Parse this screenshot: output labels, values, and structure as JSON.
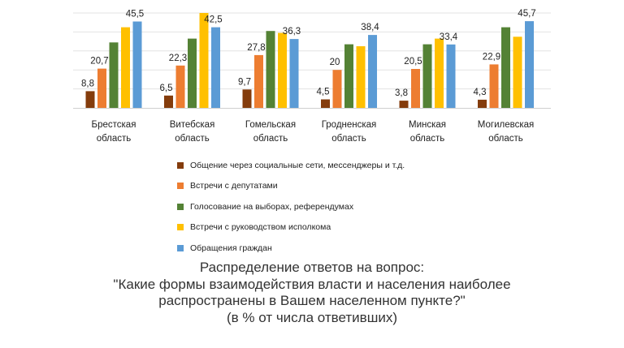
{
  "chart_data": {
    "type": "bar",
    "categories": [
      [
        "Брестская",
        "область"
      ],
      [
        "Витебская",
        "область"
      ],
      [
        "Гомельская",
        "область"
      ],
      [
        "Гродненская",
        "область"
      ],
      [
        "Минская",
        "область"
      ],
      [
        "Могилевская",
        "область"
      ]
    ],
    "series": [
      {
        "name": "Общение через социальные сети, мессенджеры и т.д.",
        "color": "#843c0c",
        "values": [
          8.8,
          6.5,
          9.7,
          4.5,
          3.8,
          4.3
        ],
        "labels": [
          "8,8",
          "6,5",
          "9,7",
          "4,5",
          "3,8",
          "4,3"
        ]
      },
      {
        "name": "Встречи с депутатами",
        "color": "#ed7d31",
        "values": [
          20.7,
          22.3,
          27.8,
          20,
          20.5,
          22.9
        ],
        "labels": [
          "20,7",
          "22,3",
          "27,8",
          "20",
          "20,5",
          "22,9"
        ]
      },
      {
        "name": "Голосование на выборах, референдумах",
        "color": "#548235",
        "values": [
          34.5,
          36.5,
          40.5,
          33.5,
          33.5,
          42.5
        ],
        "labels": [
          "",
          "",
          "",
          "",
          "",
          ""
        ]
      },
      {
        "name": "Встречи с руководством исполкома",
        "color": "#ffc000",
        "values": [
          42.5,
          50,
          39.5,
          32.5,
          36.5,
          37.5
        ],
        "labels": [
          "",
          "",
          "",
          "",
          "",
          ""
        ]
      },
      {
        "name": "Обращения граждан",
        "color": "#5b9bd5",
        "values": [
          45.5,
          42.5,
          36.3,
          38.4,
          33.4,
          45.7
        ],
        "labels": [
          "45,5",
          "42,5",
          "36,3",
          "38,4",
          "33,4",
          "45,7"
        ]
      }
    ],
    "ylim": [
      0,
      50
    ],
    "grid": true,
    "legend_position": "bottom"
  },
  "legend": [
    {
      "label": "Общение  через  социальные сети,  мессенджеры  и т.д.",
      "color": "#843c0c"
    },
    {
      "label": "Встречи  с  депутатами",
      "color": "#ed7d31"
    },
    {
      "label": "Голосование на выборах, референдумах",
      "color": "#548235"
    },
    {
      "label": "Встречи  с руководством  исполкома",
      "color": "#ffc000"
    },
    {
      "label": "Обращения  граждан",
      "color": "#5b9bd5"
    }
  ],
  "caption": {
    "line1": "Распределение ответов на вопрос:",
    "line2": "\"Какие формы взаимодействия власти и населения наиболее",
    "line3": "распространены в Вашем населенном пункте?\"",
    "line4": "(в % от числа ответивших)"
  }
}
